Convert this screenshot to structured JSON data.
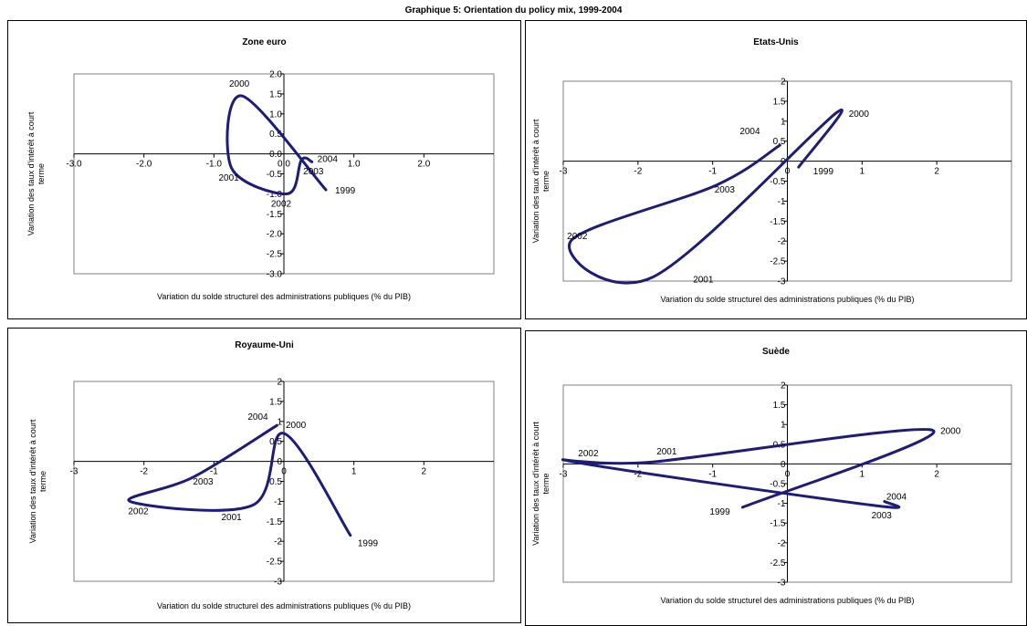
{
  "page": {
    "title": "Graphique 5: Orientation du policy mix, 1999-2004"
  },
  "colors": {
    "line": "#1c1c7a",
    "axis": "#000000",
    "plot_border": "#808080"
  },
  "chart_data": [
    {
      "type": "line",
      "title": "Zone euro",
      "xlabel": "Variation du solde structurel des administrations publiques (% du PIB)",
      "ylabel": "Variation des taux d'intérêt à court terme",
      "xlim": [
        -3,
        3
      ],
      "ylim": [
        -3,
        2
      ],
      "xticks": [
        -3.0,
        -2.0,
        -1.0,
        0.0,
        1.0,
        2.0
      ],
      "xtick_labels": [
        "-3.0",
        "-2.0",
        "-1.0",
        "0.0",
        "1.0",
        "2.0"
      ],
      "yticks": [
        2.0,
        1.5,
        1.0,
        0.5,
        0.0,
        -0.5,
        -1.0,
        -1.5,
        -2.0,
        -2.5,
        -3.0
      ],
      "ytick_labels": [
        "2.0",
        "1.5",
        "1.0",
        "0.5",
        "0.0",
        "-0.5",
        "-1.0",
        "-1.5",
        "-2.0",
        "-2.5",
        "-3.0"
      ],
      "points": [
        {
          "label": "1999",
          "x": 0.6,
          "y": -0.9
        },
        {
          "label": "2000",
          "x": -0.6,
          "y": 1.45
        },
        {
          "label": "2001",
          "x": -0.75,
          "y": -0.35
        },
        {
          "label": "2002",
          "x": 0.05,
          "y": -1.0
        },
        {
          "label": "2003",
          "x": 0.25,
          "y": -0.15
        },
        {
          "label": "2004",
          "x": 0.4,
          "y": -0.2
        }
      ]
    },
    {
      "type": "line",
      "title": "Etats-Unis",
      "xlabel": "Variation du solde structurel des administrations publiques (% du PIB)",
      "ylabel": "Variation des taux d'intérêt à court terme",
      "xlim": [
        -3,
        3
      ],
      "ylim": [
        -3,
        2
      ],
      "xticks": [
        -3,
        -2,
        -1,
        0,
        1,
        2
      ],
      "xtick_labels": [
        "-3",
        "-2",
        "-1",
        "0",
        "1",
        "2"
      ],
      "yticks": [
        2,
        1.5,
        1,
        0.5,
        0,
        -0.5,
        -1,
        -1.5,
        -2,
        -2.5,
        -3
      ],
      "ytick_labels": [
        "2",
        "1.5",
        "1",
        "0.5",
        "0",
        "-0.5",
        "-1",
        "-1.5",
        "-2",
        "-2.5",
        "-3"
      ],
      "points": [
        {
          "label": "1999",
          "x": 0.15,
          "y": -0.15
        },
        {
          "label": "2000",
          "x": 0.65,
          "y": 1.2
        },
        {
          "label": "2001",
          "x": -1.8,
          "y": -2.9
        },
        {
          "label": "2002",
          "x": -2.9,
          "y": -2.0
        },
        {
          "label": "2003",
          "x": -0.95,
          "y": -0.6
        },
        {
          "label": "2004",
          "x": -0.1,
          "y": 0.4
        }
      ]
    },
    {
      "type": "line",
      "title": "Royaume-Uni",
      "xlabel": "Variation du solde structurel des administrations publiques (% du PIB)",
      "ylabel": "Variation des taux d'intérêt à court terme",
      "xlim": [
        -3,
        3
      ],
      "ylim": [
        -3,
        2
      ],
      "xticks": [
        -3,
        -2,
        -1,
        0,
        1,
        2
      ],
      "xtick_labels": [
        "-3",
        "-2",
        "-1",
        "0",
        "1",
        "2"
      ],
      "yticks": [
        2,
        1.5,
        1,
        0.5,
        0,
        -0.5,
        -1,
        -1.5,
        -2,
        -2.5,
        -3
      ],
      "ytick_labels": [
        "2",
        "1.5",
        "1",
        "0.5",
        "0",
        "-0.5",
        "-1",
        "-1.5",
        "-2",
        "-2.5",
        "-3"
      ],
      "points": [
        {
          "label": "1999",
          "x": 0.95,
          "y": -1.85
        },
        {
          "label": "2000",
          "x": 0.0,
          "y": 0.7
        },
        {
          "label": "2001",
          "x": -0.45,
          "y": -1.1
        },
        {
          "label": "2002",
          "x": -2.2,
          "y": -1.0
        },
        {
          "label": "2003",
          "x": -1.3,
          "y": -0.4
        },
        {
          "label": "2004",
          "x": -0.1,
          "y": 0.9
        }
      ]
    },
    {
      "type": "line",
      "title": "Suède",
      "xlabel": "Variation du solde structurel des administrations publiques (% du PIB)",
      "ylabel": "Variation des taux d'intérêt à court terme",
      "xlim": [
        -3,
        3
      ],
      "ylim": [
        -3,
        2
      ],
      "xticks": [
        -3,
        -2,
        -1,
        0,
        1,
        2
      ],
      "xtick_labels": [
        "-3",
        "-2",
        "-1",
        "0",
        "1",
        "2"
      ],
      "yticks": [
        2,
        1.5,
        1,
        0.5,
        0,
        -0.5,
        -1,
        -1.5,
        -2,
        -2.5,
        -3
      ],
      "ytick_labels": [
        "2",
        "1.5",
        "1",
        "0.5",
        "0",
        "-0.5",
        "-1",
        "-1.5",
        "-2",
        "-2.5",
        "-3"
      ],
      "points": [
        {
          "label": "1999",
          "x": -0.6,
          "y": -1.1
        },
        {
          "label": "2000",
          "x": 1.95,
          "y": 0.85
        },
        {
          "label": "2001",
          "x": -1.8,
          "y": 0.05
        },
        {
          "label": "2002",
          "x": -2.85,
          "y": 0.05
        },
        {
          "label": "2003",
          "x": 1.15,
          "y": -1.05
        },
        {
          "label": "2004",
          "x": 1.3,
          "y": -0.95
        }
      ]
    }
  ]
}
